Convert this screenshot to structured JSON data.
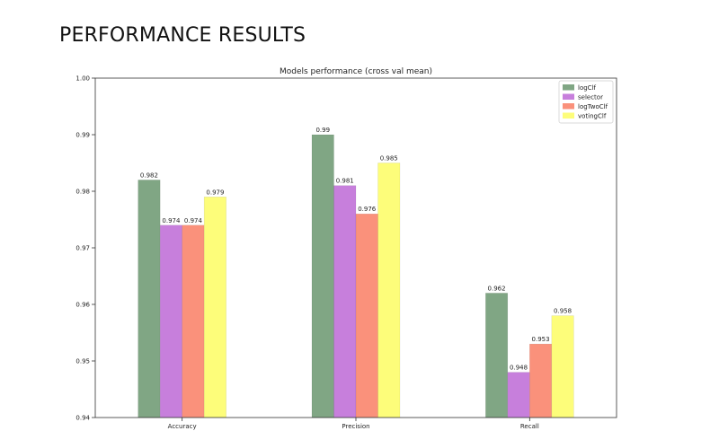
{
  "page": {
    "heading": "PERFORMANCE RESULTS"
  },
  "chart_data": {
    "type": "bar",
    "title": "Models performance (cross val mean)",
    "xlabel": "",
    "ylabel": "",
    "categories": [
      "Accuracy",
      "Precision",
      "Recall"
    ],
    "series": [
      {
        "name": "logClf",
        "color": "#80a684",
        "values": [
          0.982,
          0.99,
          0.962
        ],
        "labels": [
          "0.982",
          "0.99",
          "0.962"
        ]
      },
      {
        "name": "selector",
        "color": "#c77fdc",
        "values": [
          0.974,
          0.981,
          0.948
        ],
        "labels": [
          "0.974",
          "0.981",
          "0.948"
        ]
      },
      {
        "name": "logTwoClf",
        "color": "#fa917b",
        "values": [
          0.974,
          0.976,
          0.953
        ],
        "labels": [
          "0.974",
          "0.976",
          "0.953"
        ]
      },
      {
        "name": "votingClf",
        "color": "#fdfd7a",
        "values": [
          0.979,
          0.985,
          0.958
        ],
        "labels": [
          "0.979",
          "0.985",
          "0.958"
        ]
      }
    ],
    "ylim": [
      0.94,
      1.0
    ],
    "yticks": [
      0.94,
      0.95,
      0.96,
      0.97,
      0.98,
      0.99,
      1.0
    ],
    "ytick_labels": [
      "0.94",
      "0.95",
      "0.96",
      "0.97",
      "0.98",
      "0.99",
      "1.00"
    ],
    "grid": false,
    "legend": "top-right"
  }
}
